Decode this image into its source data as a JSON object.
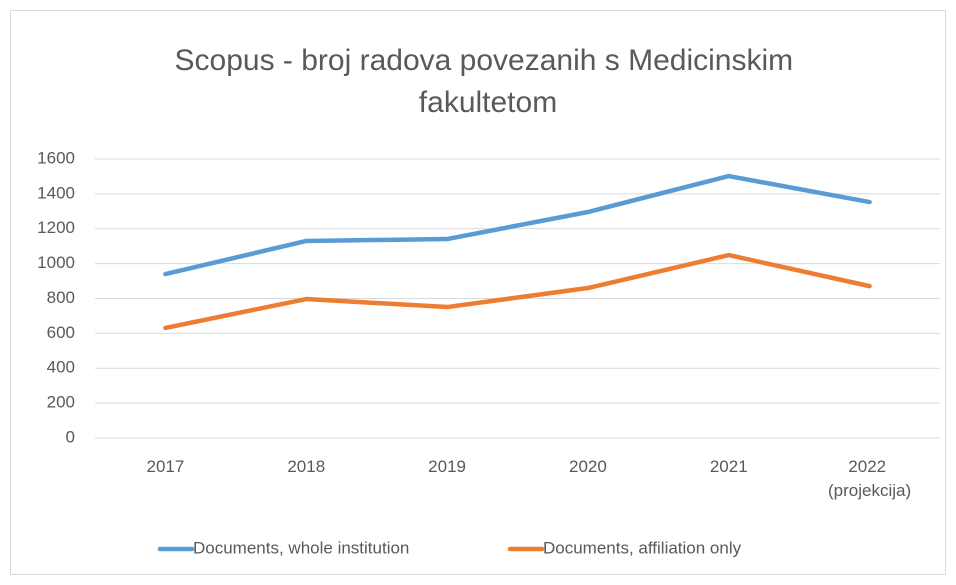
{
  "chart_data": {
    "type": "line",
    "title": "Scopus - broj radova povezanih s Medicinskim fakultetom",
    "categories": [
      "2017",
      "2018",
      "2019",
      "2020",
      "2021",
      "2022 (projekcija)"
    ],
    "series": [
      {
        "name": "Documents, whole institution",
        "color": "#5b9bd5",
        "values": [
          940,
          1130,
          1141,
          1296,
          1502,
          1353
        ]
      },
      {
        "name": "Documents, affiliation only",
        "color": "#ed7d31",
        "values": [
          631,
          797,
          751,
          860,
          1049,
          871
        ]
      }
    ],
    "ylim": [
      0,
      1600
    ],
    "yticks": [
      0,
      200,
      400,
      600,
      800,
      1000,
      1200,
      1400,
      1600
    ],
    "grid": true,
    "legend": "bottom"
  }
}
